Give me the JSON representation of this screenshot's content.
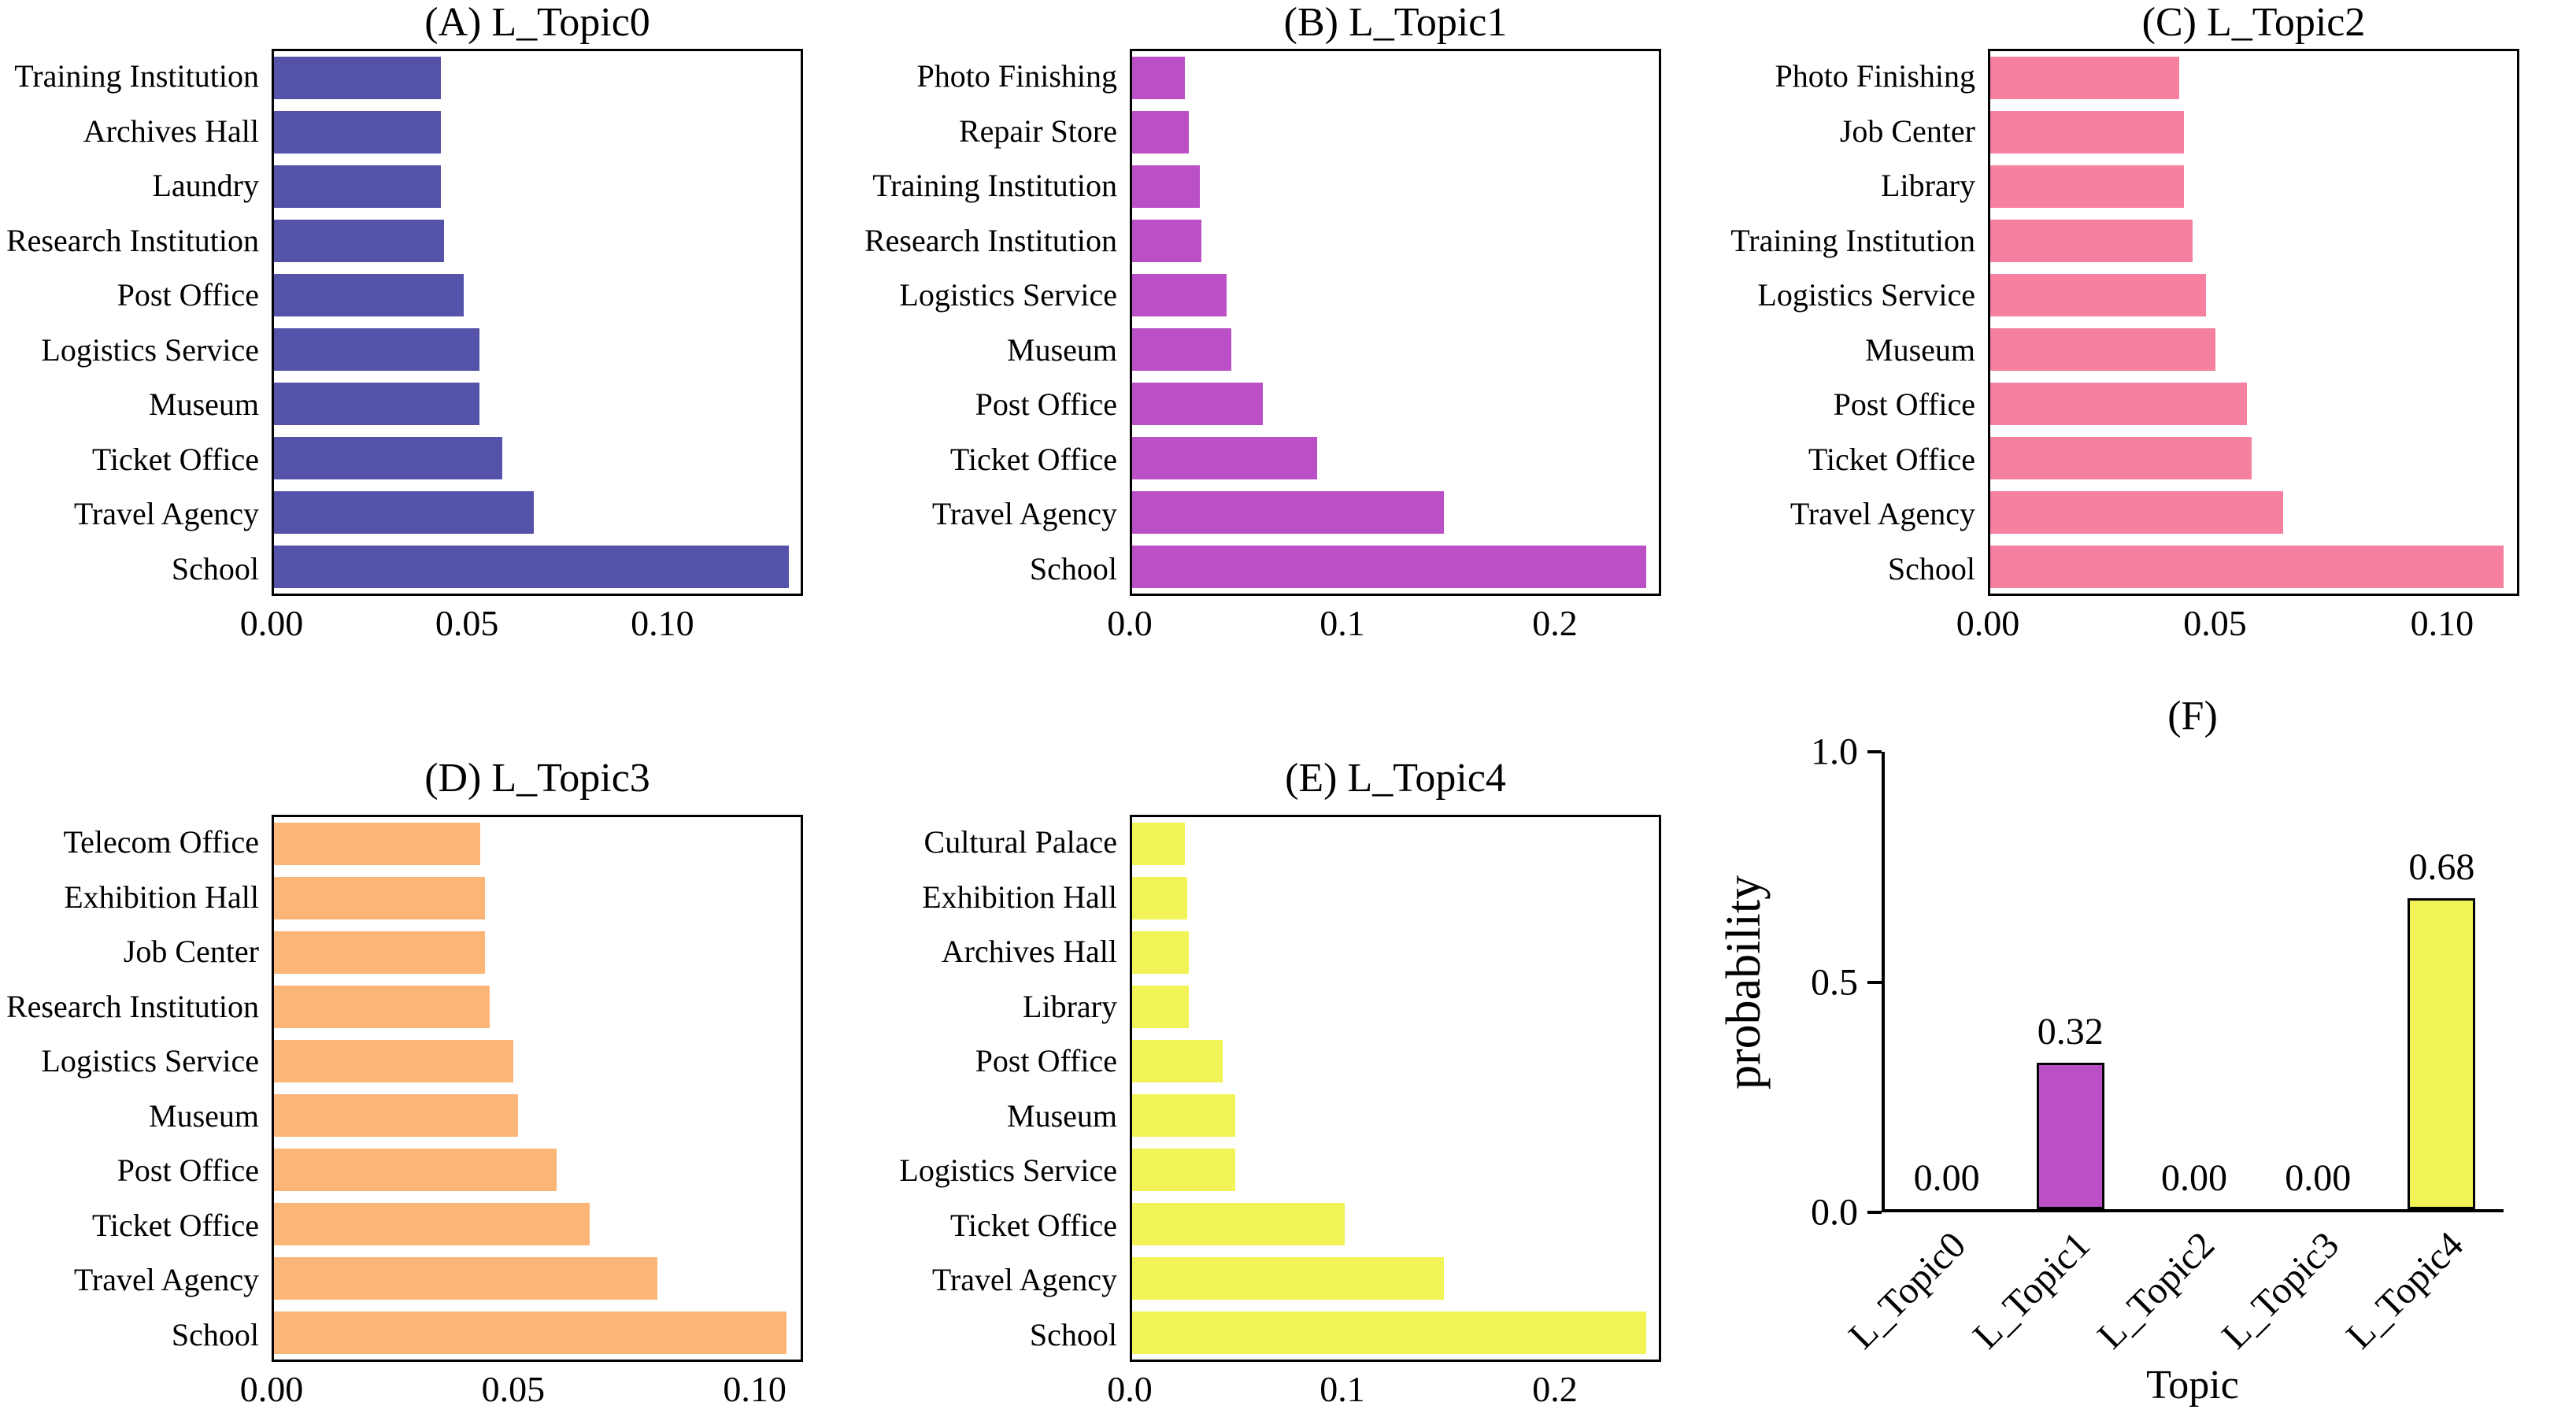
{
  "figure": {
    "background": "#ffffff",
    "text_color": "#000000",
    "axis_color": "#000000"
  },
  "chart_data": [
    {
      "id": "A",
      "type": "bar",
      "orientation": "horizontal",
      "title": "(A) L_Topic0",
      "bar_color": "#5552aa",
      "categories": [
        "Training Institution",
        "Archives Hall",
        "Laundry",
        "Research Institution",
        "Post Office",
        "Logistics Service",
        "Museum",
        "Ticket Office",
        "Travel Agency",
        "School"
      ],
      "values": [
        0.043,
        0.043,
        0.043,
        0.044,
        0.049,
        0.053,
        0.053,
        0.059,
        0.067,
        0.133
      ],
      "xlim": [
        0,
        0.136
      ],
      "xticks": [
        {
          "value": 0,
          "label": "0.00"
        },
        {
          "value": 0.05,
          "label": "0.05"
        },
        {
          "value": 0.1,
          "label": "0.10"
        }
      ],
      "grid": false
    },
    {
      "id": "B",
      "type": "bar",
      "orientation": "horizontal",
      "title": "(B) L_Topic1",
      "bar_color": "#bb50c6",
      "categories": [
        "Photo Finishing",
        "Repair Store",
        "Training Institution",
        "Research Institution",
        "Logistics Service",
        "Museum",
        "Post Office",
        "Ticket Office",
        "Travel Agency",
        "School"
      ],
      "values": [
        0.025,
        0.027,
        0.032,
        0.033,
        0.045,
        0.047,
        0.062,
        0.088,
        0.148,
        0.244
      ],
      "xlim": [
        0,
        0.25
      ],
      "xticks": [
        {
          "value": 0,
          "label": "0.0"
        },
        {
          "value": 0.1,
          "label": "0.1"
        },
        {
          "value": 0.2,
          "label": "0.2"
        }
      ],
      "grid": false
    },
    {
      "id": "C",
      "type": "bar",
      "orientation": "horizontal",
      "title": "(C) L_Topic2",
      "bar_color": "#f580a0",
      "categories": [
        "Photo Finishing",
        "Job Center",
        "Library",
        "Training Institution",
        "Logistics Service",
        "Museum",
        "Post Office",
        "Ticket Office",
        "Travel Agency",
        "School"
      ],
      "values": [
        0.042,
        0.043,
        0.043,
        0.045,
        0.048,
        0.05,
        0.057,
        0.058,
        0.065,
        0.114
      ],
      "xlim": [
        0,
        0.117
      ],
      "xticks": [
        {
          "value": 0,
          "label": "0.00"
        },
        {
          "value": 0.05,
          "label": "0.05"
        },
        {
          "value": 0.1,
          "label": "0.10"
        }
      ],
      "grid": false
    },
    {
      "id": "D",
      "type": "bar",
      "orientation": "horizontal",
      "title": "(D) L_Topic3",
      "bar_color": "#fbb677",
      "categories": [
        "Telecom Office",
        "Exhibition Hall",
        "Job Center",
        "Research Institution",
        "Logistics Service",
        "Museum",
        "Post Office",
        "Ticket Office",
        "Travel Agency",
        "School"
      ],
      "values": [
        0.043,
        0.044,
        0.044,
        0.045,
        0.05,
        0.051,
        0.059,
        0.066,
        0.08,
        0.107
      ],
      "xlim": [
        0,
        0.11
      ],
      "xticks": [
        {
          "value": 0,
          "label": "0.00"
        },
        {
          "value": 0.05,
          "label": "0.05"
        },
        {
          "value": 0.1,
          "label": "0.10"
        }
      ],
      "grid": false
    },
    {
      "id": "E",
      "type": "bar",
      "orientation": "horizontal",
      "title": "(E) L_Topic4",
      "bar_color": "#f1f357",
      "categories": [
        "Cultural Palace",
        "Exhibition Hall",
        "Archives Hall",
        "Library",
        "Post Office",
        "Museum",
        "Logistics Service",
        "Ticket Office",
        "Travel Agency",
        "School"
      ],
      "values": [
        0.025,
        0.026,
        0.027,
        0.027,
        0.043,
        0.049,
        0.049,
        0.101,
        0.148,
        0.244
      ],
      "xlim": [
        0,
        0.25
      ],
      "xticks": [
        {
          "value": 0,
          "label": "0.0"
        },
        {
          "value": 0.1,
          "label": "0.1"
        },
        {
          "value": 0.2,
          "label": "0.2"
        }
      ],
      "grid": false
    },
    {
      "id": "F",
      "type": "bar",
      "orientation": "vertical",
      "title": "(F)",
      "xlabel": "Topic",
      "ylabel": "probability",
      "categories": [
        "L_Topic0",
        "L_Topic1",
        "L_Topic2",
        "L_Topic3",
        "L_Topic4"
      ],
      "values": [
        0.0,
        0.32,
        0.0,
        0.0,
        0.68
      ],
      "value_labels": [
        "0.00",
        "0.32",
        "0.00",
        "0.00",
        "0.68"
      ],
      "bar_colors": [
        null,
        "#bb50c6",
        null,
        null,
        "#f1f357"
      ],
      "ylim": [
        0,
        1.0
      ],
      "yticks": [
        {
          "value": 0.0,
          "label": "0.0"
        },
        {
          "value": 0.5,
          "label": "0.5"
        },
        {
          "value": 1.0,
          "label": "1.0"
        }
      ],
      "xtick_rotation": 45,
      "grid": false,
      "legend": null
    }
  ]
}
